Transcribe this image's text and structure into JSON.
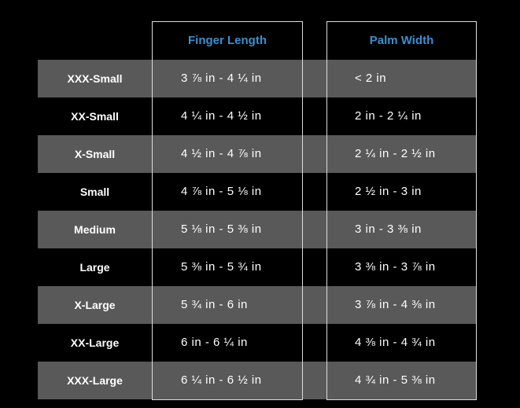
{
  "table": {
    "columns": [
      "Finger Length",
      "Palm Width"
    ],
    "rows": [
      [
        "XXX-Small",
        "3 ⅞ in - 4 ¼ in",
        "< 2 in"
      ],
      [
        "XX-Small",
        "4 ¼ in - 4 ½ in",
        "2 in - 2 ¼ in"
      ],
      [
        "X-Small",
        "4 ½ in - 4 ⅞ in",
        "2 ¼ in - 2 ½ in"
      ],
      [
        "Small",
        "4 ⅞ in - 5 ⅛ in",
        "2 ½ in - 3 in"
      ],
      [
        "Medium",
        "5 ⅛ in - 5 ⅜ in",
        "3 in - 3 ⅜ in"
      ],
      [
        "Large",
        "5 ⅜ in - 5 ¾ in",
        "3 ⅜ in - 3 ⅞ in"
      ],
      [
        "X-Large",
        "5 ¾ in - 6 in",
        "3 ⅞ in - 4 ⅜ in"
      ],
      [
        "XX-Large",
        "6 in - 6 ¼ in",
        "4 ⅜ in - 4 ¾ in"
      ],
      [
        "XXX-Large",
        "6 ¼ in - 6 ½ in",
        "4 ¾ in - 5 ⅜ in"
      ]
    ]
  }
}
